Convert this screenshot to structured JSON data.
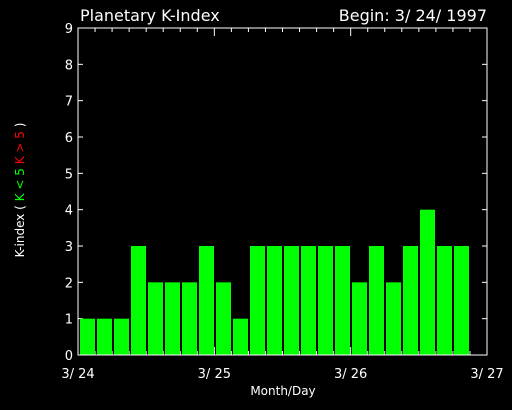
{
  "chart_data": {
    "type": "bar",
    "title": "Planetary K-Index",
    "begin_label": "Begin: 3/ 24/ 1997",
    "xlabel": "Month/Day",
    "ylabel": {
      "prefix": "K-index",
      "open_paren": "(",
      "green_part": "K < 5",
      "red_part": "K > 5",
      "close_paren": ")"
    },
    "ylim": [
      0,
      9
    ],
    "yticks": [
      "0",
      "1",
      "2",
      "3",
      "4",
      "5",
      "6",
      "7",
      "8",
      "9"
    ],
    "xlim": [
      0,
      24
    ],
    "xtick_labels": [
      {
        "x": 0,
        "label": "3/ 24"
      },
      {
        "x": 8,
        "label": "3/ 25"
      },
      {
        "x": 16,
        "label": "3/ 26"
      },
      {
        "x": 24,
        "label": "3/ 27"
      }
    ],
    "bar_color": "#00ff00",
    "values": [
      1,
      1,
      1,
      3,
      2,
      2,
      2,
      3,
      2,
      1,
      3,
      3,
      3,
      3,
      3,
      3,
      2,
      3,
      2,
      3,
      4,
      3,
      3
    ]
  },
  "colors": {
    "background": "#000000",
    "axes": "#ffffff",
    "green": "#00ff00",
    "red": "#ff0000"
  }
}
